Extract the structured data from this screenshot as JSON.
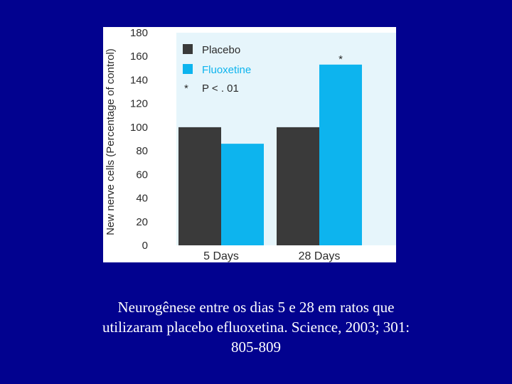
{
  "chart_data": {
    "type": "bar",
    "categories": [
      "5 Days",
      "28 Days"
    ],
    "series": [
      {
        "name": "Placebo",
        "values": [
          100,
          100
        ],
        "color": "#3a3a3a"
      },
      {
        "name": "Fluoxetine",
        "values": [
          86,
          153
        ],
        "color": "#0db4ee"
      }
    ],
    "ylabel": "New nerve cells (Percentage of control)",
    "xlabel": "",
    "ylim": [
      0,
      180
    ],
    "yticks": [
      0,
      20,
      40,
      60,
      80,
      100,
      120,
      140,
      160,
      180
    ],
    "legend": {
      "placement": "top-left",
      "note_symbol": "*",
      "note_text": "P < . 01"
    },
    "annotations": [
      {
        "category": "28 Days",
        "series": "Fluoxetine",
        "text": "*"
      }
    ],
    "grid": false,
    "plot_background": "#e6f5fb"
  },
  "caption": {
    "line1": "Neurogênese entre os dias 5 e 28 em ratos que",
    "line2": "utilizaram placebo efluoxetina. Science, 2003; 301:",
    "line3": "805-809"
  }
}
